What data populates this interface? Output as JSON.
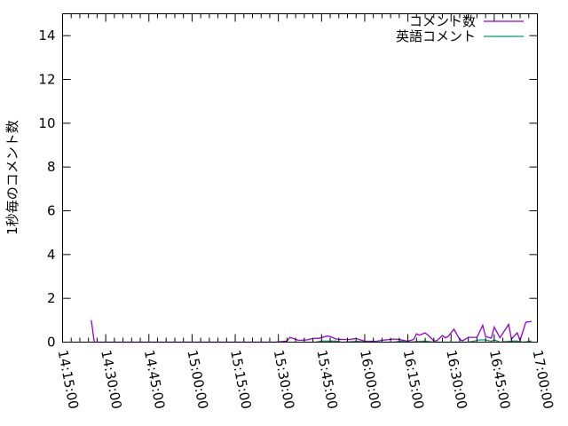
{
  "chart_data": {
    "type": "line",
    "title": "",
    "xlabel": "",
    "ylabel": "1秒毎のコメント数",
    "xlim": [
      "14:15:00",
      "17:00:00"
    ],
    "ylim": [
      0,
      15
    ],
    "x_tick_labels": [
      "14:15:00",
      "14:30:00",
      "14:45:00",
      "15:00:00",
      "15:15:00",
      "15:30:00",
      "15:45:00",
      "16:00:00",
      "16:15:00",
      "16:30:00",
      "16:45:00",
      "17:00:00"
    ],
    "y_tick_labels": [
      "0",
      "2",
      "4",
      "6",
      "8",
      "10",
      "12",
      "14"
    ],
    "y_ticks": [
      0,
      2,
      4,
      6,
      8,
      10,
      12,
      14
    ],
    "grid": false,
    "legend_position": "top-right",
    "series": [
      {
        "name": "コメント数",
        "color": "#9400d3",
        "points": [
          [
            "14:25",
            1
          ],
          [
            "14:26",
            0
          ],
          [
            "15:29",
            0
          ],
          [
            "15:33",
            0.05
          ],
          [
            "15:34",
            0.22
          ],
          [
            "15:37",
            0.08
          ],
          [
            "15:40",
            0.1
          ],
          [
            "15:41",
            0.14
          ],
          [
            "15:43",
            0.18
          ],
          [
            "15:44",
            0.17
          ],
          [
            "15:47",
            0.28
          ],
          [
            "15:48",
            0.26
          ],
          [
            "15:50",
            0.14
          ],
          [
            "15:52",
            0.12
          ],
          [
            "15:55",
            0.12
          ],
          [
            "15:57",
            0.17
          ],
          [
            "15:59",
            0.08
          ],
          [
            "16:00",
            0.04
          ],
          [
            "16:04",
            0.04
          ],
          [
            "16:06",
            0.08
          ],
          [
            "16:10",
            0.14
          ],
          [
            "16:12",
            0.12
          ],
          [
            "16:15",
            0.04
          ],
          [
            "16:17",
            0.12
          ],
          [
            "16:18",
            0.38
          ],
          [
            "16:19",
            0.32
          ],
          [
            "16:21",
            0.42
          ],
          [
            "16:22",
            0.32
          ],
          [
            "16:24",
            0.06
          ],
          [
            "16:25",
            0.06
          ],
          [
            "16:27",
            0.3
          ],
          [
            "16:28",
            0.2
          ],
          [
            "16:29",
            0.26
          ],
          [
            "16:31",
            0.59
          ],
          [
            "16:33",
            0.12
          ],
          [
            "16:34",
            0.06
          ],
          [
            "16:36",
            0.22
          ],
          [
            "16:39",
            0.22
          ],
          [
            "16:41",
            0.77
          ],
          [
            "16:42",
            0.26
          ],
          [
            "16:44",
            0.18
          ],
          [
            "16:45",
            0.69
          ],
          [
            "16:47",
            0.2
          ],
          [
            "16:50",
            0.81
          ],
          [
            "16:51",
            0.14
          ],
          [
            "16:53",
            0.42
          ],
          [
            "16:54",
            0.08
          ],
          [
            "16:56",
            0.91
          ],
          [
            "16:58",
            0.95
          ]
        ]
      },
      {
        "name": "英語コメント",
        "color": "#009e73",
        "points": [
          [
            "15:43",
            0
          ],
          [
            "15:45",
            0.05
          ],
          [
            "15:50",
            0.05
          ],
          [
            "15:52",
            0
          ],
          [
            "15:58",
            0.04
          ],
          [
            "16:00",
            0
          ],
          [
            "16:10",
            0
          ],
          [
            "16:13",
            0.05
          ],
          [
            "16:15",
            0
          ],
          [
            "16:21",
            0.05
          ],
          [
            "16:24",
            0
          ],
          [
            "16:36",
            0
          ],
          [
            "16:40",
            0.1
          ],
          [
            "16:42",
            0.1
          ],
          [
            "16:44",
            0.04
          ],
          [
            "16:45",
            0.1
          ],
          [
            "16:47",
            0
          ],
          [
            "16:51",
            0.05
          ],
          [
            "16:53",
            0.05
          ],
          [
            "16:55",
            0
          ],
          [
            "16:58",
            0.05
          ]
        ]
      }
    ]
  }
}
